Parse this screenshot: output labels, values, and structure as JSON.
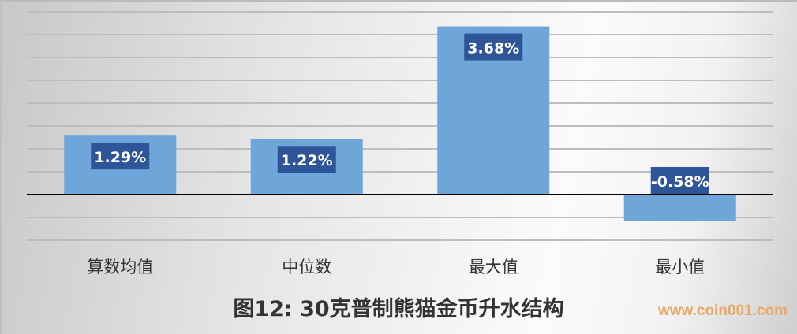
{
  "chart_data": {
    "type": "bar",
    "title": "图12: 30克普制熊猫金币升水结构",
    "categories": [
      "算数均值",
      "中位数",
      "最大值",
      "最小值"
    ],
    "values": [
      1.29,
      1.22,
      3.68,
      -0.58
    ],
    "data_labels": [
      "1.29%",
      "1.22%",
      "3.68%",
      "-0.58%"
    ],
    "ylim": [
      -1.0,
      4.0
    ],
    "ytick_step": 0.5,
    "grid": true,
    "colors": {
      "bar": "#6fa6d9",
      "label_bg": "#2e5597",
      "label_text": "#ffffff"
    }
  },
  "watermark": "www.coin001.com"
}
